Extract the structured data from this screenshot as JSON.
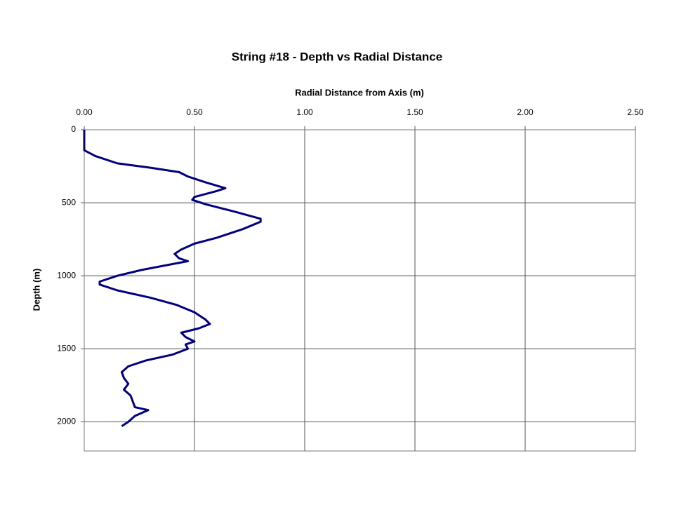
{
  "chart_data": {
    "type": "line",
    "title": "String #18 - Depth vs Radial Distance",
    "x_label": "Radial Distance from Axis (m)",
    "y_label": "Depth (m)",
    "x": [
      0,
      0,
      0.05,
      0.15,
      0.3,
      0.43,
      0.47,
      0.55,
      0.64,
      0.6,
      0.5,
      0.49,
      0.55,
      0.68,
      0.8,
      0.8,
      0.72,
      0.6,
      0.5,
      0.44,
      0.41,
      0.43,
      0.47,
      0.4,
      0.26,
      0.15,
      0.07,
      0.07,
      0.15,
      0.3,
      0.42,
      0.5,
      0.55,
      0.57,
      0.52,
      0.44,
      0.46,
      0.5,
      0.46,
      0.47,
      0.4,
      0.28,
      0.2,
      0.17,
      0.18,
      0.2,
      0.18,
      0.21,
      0.22,
      0.23,
      0.29,
      0.23,
      0.2,
      0.17
    ],
    "values": [
      0,
      140,
      180,
      230,
      260,
      290,
      320,
      360,
      400,
      420,
      460,
      480,
      510,
      560,
      610,
      630,
      680,
      740,
      780,
      820,
      850,
      880,
      900,
      920,
      960,
      1000,
      1040,
      1060,
      1100,
      1150,
      1200,
      1250,
      1300,
      1330,
      1360,
      1390,
      1420,
      1450,
      1470,
      1500,
      1540,
      1580,
      1620,
      1660,
      1700,
      1740,
      1780,
      1820,
      1860,
      1900,
      1920,
      1960,
      2000,
      2030
    ],
    "color": "#000080",
    "xlim": [
      0,
      2.5
    ],
    "xticks": [
      {
        "value": 0,
        "label": "0.00"
      },
      {
        "value": 0.5,
        "label": "0.50"
      },
      {
        "value": 1,
        "label": "1.00"
      },
      {
        "value": 1.5,
        "label": "1.50"
      },
      {
        "value": 2,
        "label": "2.00"
      },
      {
        "value": 2.5,
        "label": "2.50"
      }
    ],
    "ylim": [
      0,
      2200
    ],
    "yticks": [
      0,
      500,
      1000,
      1500,
      2000
    ],
    "y_inverted": true,
    "x_axis_position": "top",
    "grid": true
  }
}
